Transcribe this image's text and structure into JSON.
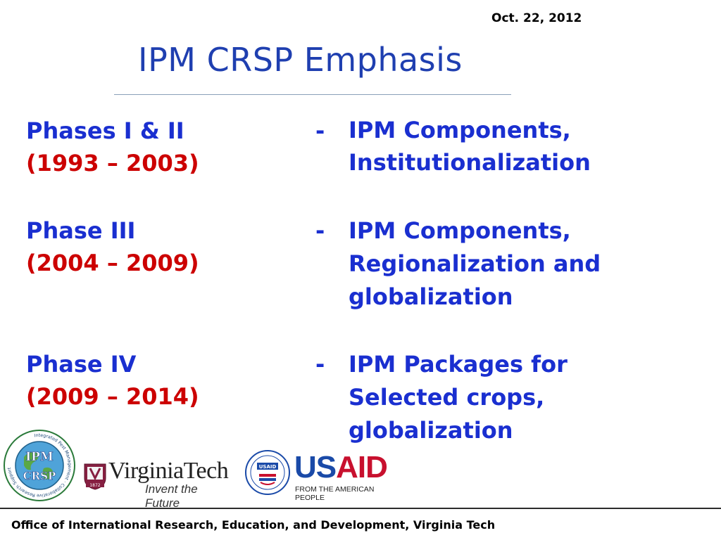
{
  "header": {
    "date": "Oct. 22, 2012",
    "title": "IPM CRSP Emphasis"
  },
  "phases": [
    {
      "label": "Phases I & II",
      "years": "(1993 – 2003)",
      "dash": "-",
      "lines": [
        "IPM Components,",
        "Institutionalization"
      ]
    },
    {
      "label": "Phase III",
      "years": "(2004 – 2009)",
      "dash": "-",
      "lines": [
        "IPM Components,",
        "Regionalization and",
        "globalization"
      ]
    },
    {
      "label": "Phase IV",
      "years": "(2009 – 2014)",
      "dash": "-",
      "lines": [
        "IPM Packages for",
        "Selected crops,",
        "globalization"
      ]
    }
  ],
  "logos": {
    "ipm_crsp": {
      "line1": "IPM",
      "line2": "CRSP",
      "ring_text": "Integrated Pest Management · Collaborative Research Support Program"
    },
    "virginia_tech": {
      "shield_year": "1872",
      "name": "VirginiaTech",
      "tagline": "Invent the Future"
    },
    "usaid": {
      "seal_badge": "USAID",
      "name": "USAID",
      "tagline": "FROM THE AMERICAN PEOPLE",
      "colors": {
        "blue": "#1a4aa8",
        "red": "#c8102e"
      }
    }
  },
  "footer": {
    "text": "Office of International Research, Education, and Development, Virginia Tech"
  }
}
